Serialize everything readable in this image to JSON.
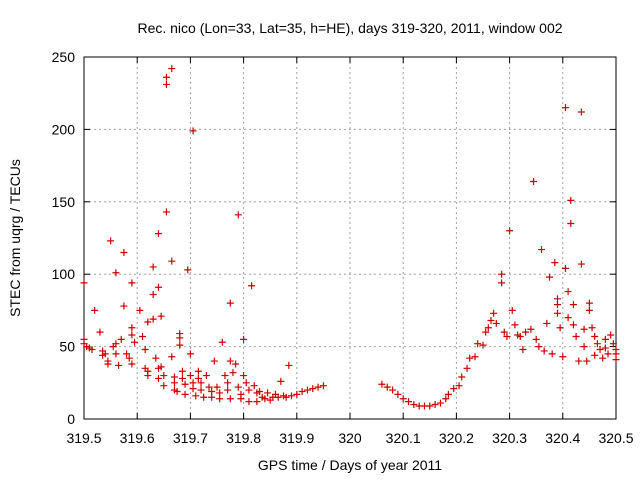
{
  "chart_data": {
    "type": "scatter",
    "title": "Rec. nico (Lon=33, Lat=35, h=HE), days 319-320, 2011, window 002",
    "xlabel": "GPS time / Days of year 2011",
    "ylabel": "STEC from uqrg / TECUs",
    "xlim": [
      319.5,
      320.5
    ],
    "ylim": [
      0,
      250
    ],
    "xticks": [
      319.5,
      319.6,
      319.7,
      319.8,
      319.9,
      320,
      320.1,
      320.2,
      320.3,
      320.4,
      320.5
    ],
    "xtick_labels": [
      "319.5",
      "319.6",
      "319.7",
      "319.8",
      "319.9",
      "320",
      "320.1",
      "320.2",
      "320.3",
      "320.4",
      "320.5"
    ],
    "yticks": [
      0,
      50,
      100,
      150,
      200,
      250
    ],
    "ytick_labels": [
      "0",
      "50",
      "100",
      "150",
      "200",
      "250"
    ],
    "grid": true,
    "marker": "+",
    "color": "#cc0000",
    "series": [
      {
        "name": "STEC",
        "points": [
          [
            319.5,
            94
          ],
          [
            319.5,
            55
          ],
          [
            319.5,
            52
          ],
          [
            319.505,
            50
          ],
          [
            319.51,
            49
          ],
          [
            319.515,
            48
          ],
          [
            319.52,
            75
          ],
          [
            319.53,
            60
          ],
          [
            319.535,
            47
          ],
          [
            319.535,
            44
          ],
          [
            319.54,
            45
          ],
          [
            319.545,
            40
          ],
          [
            319.545,
            38
          ],
          [
            319.55,
            123
          ],
          [
            319.555,
            50
          ],
          [
            319.56,
            101
          ],
          [
            319.56,
            52
          ],
          [
            319.56,
            45
          ],
          [
            319.565,
            37
          ],
          [
            319.57,
            55
          ],
          [
            319.575,
            115
          ],
          [
            319.575,
            78
          ],
          [
            319.58,
            45
          ],
          [
            319.585,
            42
          ],
          [
            319.59,
            94
          ],
          [
            319.59,
            63
          ],
          [
            319.59,
            58
          ],
          [
            319.595,
            53
          ],
          [
            319.59,
            38
          ],
          [
            319.605,
            75
          ],
          [
            319.61,
            57
          ],
          [
            319.615,
            48
          ],
          [
            319.615,
            35
          ],
          [
            319.62,
            33
          ],
          [
            319.62,
            30
          ],
          [
            319.62,
            67
          ],
          [
            319.63,
            105
          ],
          [
            319.63,
            86
          ],
          [
            319.63,
            69
          ],
          [
            319.635,
            42
          ],
          [
            319.64,
            35
          ],
          [
            319.64,
            28
          ],
          [
            319.64,
            128
          ],
          [
            319.64,
            91
          ],
          [
            319.645,
            71
          ],
          [
            319.645,
            36
          ],
          [
            319.65,
            30
          ],
          [
            319.65,
            23
          ],
          [
            319.655,
            231
          ],
          [
            319.655,
            236
          ],
          [
            319.655,
            143
          ],
          [
            319.665,
            242
          ],
          [
            319.665,
            109
          ],
          [
            319.665,
            43
          ],
          [
            319.67,
            29
          ],
          [
            319.67,
            25
          ],
          [
            319.67,
            20
          ],
          [
            319.675,
            19
          ],
          [
            319.68,
            59
          ],
          [
            319.68,
            56
          ],
          [
            319.68,
            51
          ],
          [
            319.685,
            33
          ],
          [
            319.685,
            28
          ],
          [
            319.69,
            24
          ],
          [
            319.69,
            17
          ],
          [
            319.695,
            103
          ],
          [
            319.7,
            45
          ],
          [
            319.7,
            30
          ],
          [
            319.705,
            25
          ],
          [
            319.705,
            21
          ],
          [
            319.705,
            199
          ],
          [
            319.71,
            16
          ],
          [
            319.715,
            33
          ],
          [
            319.715,
            28
          ],
          [
            319.72,
            25
          ],
          [
            319.72,
            20
          ],
          [
            319.725,
            15
          ],
          [
            319.73,
            30
          ],
          [
            319.735,
            22
          ],
          [
            319.74,
            19
          ],
          [
            319.74,
            15
          ],
          [
            319.745,
            40
          ],
          [
            319.75,
            22
          ],
          [
            319.755,
            18
          ],
          [
            319.755,
            14
          ],
          [
            319.76,
            53
          ],
          [
            319.765,
            30
          ],
          [
            319.77,
            25
          ],
          [
            319.77,
            20
          ],
          [
            319.775,
            80
          ],
          [
            319.775,
            40
          ],
          [
            319.775,
            14
          ],
          [
            319.78,
            32
          ],
          [
            319.785,
            38
          ],
          [
            319.79,
            141
          ],
          [
            319.79,
            22
          ],
          [
            319.795,
            17
          ],
          [
            319.795,
            14
          ],
          [
            319.8,
            55
          ],
          [
            319.8,
            30
          ],
          [
            319.805,
            25
          ],
          [
            319.81,
            20
          ],
          [
            319.81,
            12
          ],
          [
            319.815,
            92
          ],
          [
            319.82,
            23
          ],
          [
            319.825,
            18
          ],
          [
            319.825,
            12
          ],
          [
            319.83,
            19
          ],
          [
            319.835,
            15
          ],
          [
            319.84,
            14
          ],
          [
            319.845,
            18
          ],
          [
            319.85,
            13
          ],
          [
            319.855,
            15
          ],
          [
            319.86,
            17
          ],
          [
            319.865,
            15
          ],
          [
            319.87,
            26
          ],
          [
            319.875,
            16
          ],
          [
            319.88,
            15
          ],
          [
            319.885,
            37
          ],
          [
            319.89,
            16
          ],
          [
            319.9,
            17
          ],
          [
            319.91,
            19
          ],
          [
            319.92,
            20
          ],
          [
            319.93,
            21
          ],
          [
            319.94,
            22
          ],
          [
            319.95,
            23
          ],
          [
            320.06,
            24
          ],
          [
            320.07,
            22
          ],
          [
            320.08,
            20
          ],
          [
            320.09,
            17
          ],
          [
            320.1,
            14
          ],
          [
            320.11,
            12
          ],
          [
            320.12,
            10
          ],
          [
            320.13,
            9
          ],
          [
            320.14,
            9
          ],
          [
            320.15,
            9
          ],
          [
            320.16,
            10
          ],
          [
            320.17,
            11
          ],
          [
            320.18,
            14
          ],
          [
            320.185,
            17
          ],
          [
            320.195,
            21
          ],
          [
            320.205,
            23
          ],
          [
            320.21,
            29
          ],
          [
            320.22,
            35
          ],
          [
            320.225,
            42
          ],
          [
            320.235,
            43
          ],
          [
            320.24,
            52
          ],
          [
            320.25,
            51
          ],
          [
            320.255,
            60
          ],
          [
            320.26,
            63
          ],
          [
            320.265,
            68
          ],
          [
            320.27,
            73
          ],
          [
            320.275,
            66
          ],
          [
            320.285,
            100
          ],
          [
            320.285,
            94
          ],
          [
            320.29,
            60
          ],
          [
            320.295,
            57
          ],
          [
            320.3,
            130
          ],
          [
            320.305,
            75
          ],
          [
            320.31,
            65
          ],
          [
            320.315,
            58
          ],
          [
            320.32,
            57
          ],
          [
            320.325,
            48
          ],
          [
            320.33,
            60
          ],
          [
            320.34,
            62
          ],
          [
            320.345,
            164
          ],
          [
            320.35,
            55
          ],
          [
            320.355,
            50
          ],
          [
            320.36,
            117
          ],
          [
            320.365,
            47
          ],
          [
            320.37,
            66
          ],
          [
            320.375,
            98
          ],
          [
            320.38,
            45
          ],
          [
            320.385,
            108
          ],
          [
            320.39,
            83
          ],
          [
            320.39,
            79
          ],
          [
            320.39,
            73
          ],
          [
            320.395,
            63
          ],
          [
            320.4,
            43
          ],
          [
            320.405,
            215
          ],
          [
            320.405,
            104
          ],
          [
            320.41,
            88
          ],
          [
            320.41,
            70
          ],
          [
            320.415,
            151
          ],
          [
            320.415,
            135
          ],
          [
            320.42,
            79
          ],
          [
            320.42,
            65
          ],
          [
            320.425,
            57
          ],
          [
            320.43,
            40
          ],
          [
            320.435,
            212
          ],
          [
            320.435,
            107
          ],
          [
            320.44,
            50
          ],
          [
            320.44,
            62
          ],
          [
            320.445,
            40
          ],
          [
            320.45,
            80
          ],
          [
            320.45,
            75
          ],
          [
            320.455,
            63
          ],
          [
            320.46,
            57
          ],
          [
            320.46,
            44
          ],
          [
            320.465,
            52
          ],
          [
            320.47,
            48
          ],
          [
            320.475,
            42
          ],
          [
            320.48,
            55
          ],
          [
            320.48,
            49
          ],
          [
            320.485,
            45
          ],
          [
            320.49,
            58
          ],
          [
            320.495,
            52
          ],
          [
            320.5,
            48
          ],
          [
            320.5,
            45
          ],
          [
            320.5,
            41
          ]
        ]
      }
    ]
  }
}
